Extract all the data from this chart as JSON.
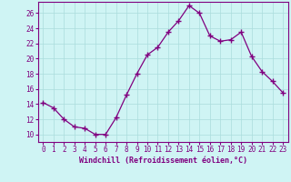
{
  "x": [
    0,
    1,
    2,
    3,
    4,
    5,
    6,
    7,
    8,
    9,
    10,
    11,
    12,
    13,
    14,
    15,
    16,
    17,
    18,
    19,
    20,
    21,
    22,
    23
  ],
  "y": [
    14.2,
    13.5,
    12.0,
    11.0,
    10.8,
    10.0,
    10.0,
    12.2,
    15.2,
    18.0,
    20.5,
    21.5,
    23.5,
    25.0,
    27.0,
    26.0,
    23.0,
    22.3,
    22.5,
    23.5,
    20.3,
    18.3,
    17.0,
    15.5
  ],
  "line_color": "#800080",
  "marker": "+",
  "marker_size": 4,
  "marker_linewidth": 1.0,
  "bg_color": "#cff4f4",
  "grid_color": "#aadddd",
  "xlabel": "Windchill (Refroidissement éolien,°C)",
  "ylim": [
    9,
    27.5
  ],
  "xlim": [
    -0.5,
    23.5
  ],
  "yticks": [
    10,
    12,
    14,
    16,
    18,
    20,
    22,
    24,
    26
  ],
  "xticks": [
    0,
    1,
    2,
    3,
    4,
    5,
    6,
    7,
    8,
    9,
    10,
    11,
    12,
    13,
    14,
    15,
    16,
    17,
    18,
    19,
    20,
    21,
    22,
    23
  ],
  "tick_color": "#800080",
  "label_color": "#800080",
  "spine_color": "#800080",
  "tick_fontsize": 5.5,
  "xlabel_fontsize": 6.0
}
